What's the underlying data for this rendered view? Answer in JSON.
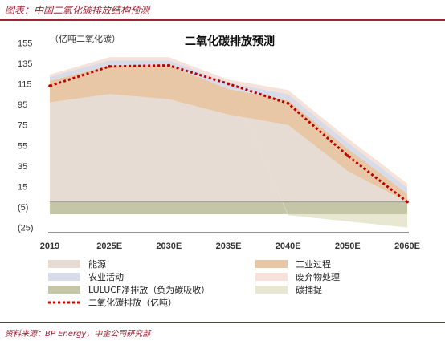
{
  "figure": {
    "caption": "图表：中国二氧化碳排放结构预测",
    "source": "资料来源：BP Energy，中金公司研究部"
  },
  "chart_data": {
    "type": "area",
    "title": "二氧化碳排放预测",
    "unit_label": "（亿吨二氧化碳）",
    "x": [
      "2019",
      "2025E",
      "2030E",
      "2035E",
      "2040E",
      "2050E",
      "2060E"
    ],
    "yticks": [
      "155",
      "135",
      "115",
      "95",
      "75",
      "55",
      "35",
      "15",
      "(5)",
      "(25)"
    ],
    "ylim": [
      -30,
      160
    ],
    "series": [
      {
        "name": "能源",
        "key": "energy",
        "color": "#e6dcd4",
        "values": [
          97,
          105,
          100,
          85,
          75,
          30,
          0
        ]
      },
      {
        "name": "工业过程",
        "key": "industry",
        "color": "#e7c7a6",
        "values": [
          21,
          28,
          33,
          25,
          24,
          22,
          8
        ]
      },
      {
        "name": "农业活动",
        "key": "agriculture",
        "color": "#d8dbe8",
        "values": [
          4,
          5,
          5,
          6,
          6,
          6,
          6
        ]
      },
      {
        "name": "废弃物处理",
        "key": "waste",
        "color": "#f6e2d8",
        "values": [
          2,
          3,
          3,
          3,
          4,
          4,
          4
        ]
      },
      {
        "name": "LULUCF净排放（负为碳吸收）",
        "key": "lulucf",
        "color": "#c5c5a8",
        "values": [
          -12,
          -12,
          -12,
          -12,
          -12,
          -12,
          -12
        ]
      },
      {
        "name": "碳捕捉",
        "key": "ccs",
        "color": "#e8e8d2",
        "values": [
          0,
          0,
          0,
          0,
          -1,
          -7,
          -13
        ]
      }
    ],
    "line": {
      "name": "二氧化碳排放（亿吨）",
      "color": "#c00000",
      "values": [
        113,
        132,
        133,
        115,
        96,
        45,
        0
      ]
    }
  },
  "legend": [
    {
      "key": "energy",
      "label": "能源",
      "kind": "box",
      "color": "#e6dcd4"
    },
    {
      "key": "industry",
      "label": "工业过程",
      "kind": "box",
      "color": "#e7c7a6"
    },
    {
      "key": "agriculture",
      "label": "农业活动",
      "kind": "box",
      "color": "#d8dbe8"
    },
    {
      "key": "waste",
      "label": "废弃物处理",
      "kind": "box",
      "color": "#f6e2d8"
    },
    {
      "key": "lulucf",
      "label": "LULUCF净排放（负为碳吸收）",
      "kind": "box",
      "color": "#c5c5a8"
    },
    {
      "key": "ccs",
      "label": "碳捕捉",
      "kind": "box",
      "color": "#e8e8d2"
    },
    {
      "key": "co2",
      "label": "二氧化碳排放（亿吨）",
      "kind": "dots",
      "color": "#c00000"
    }
  ]
}
